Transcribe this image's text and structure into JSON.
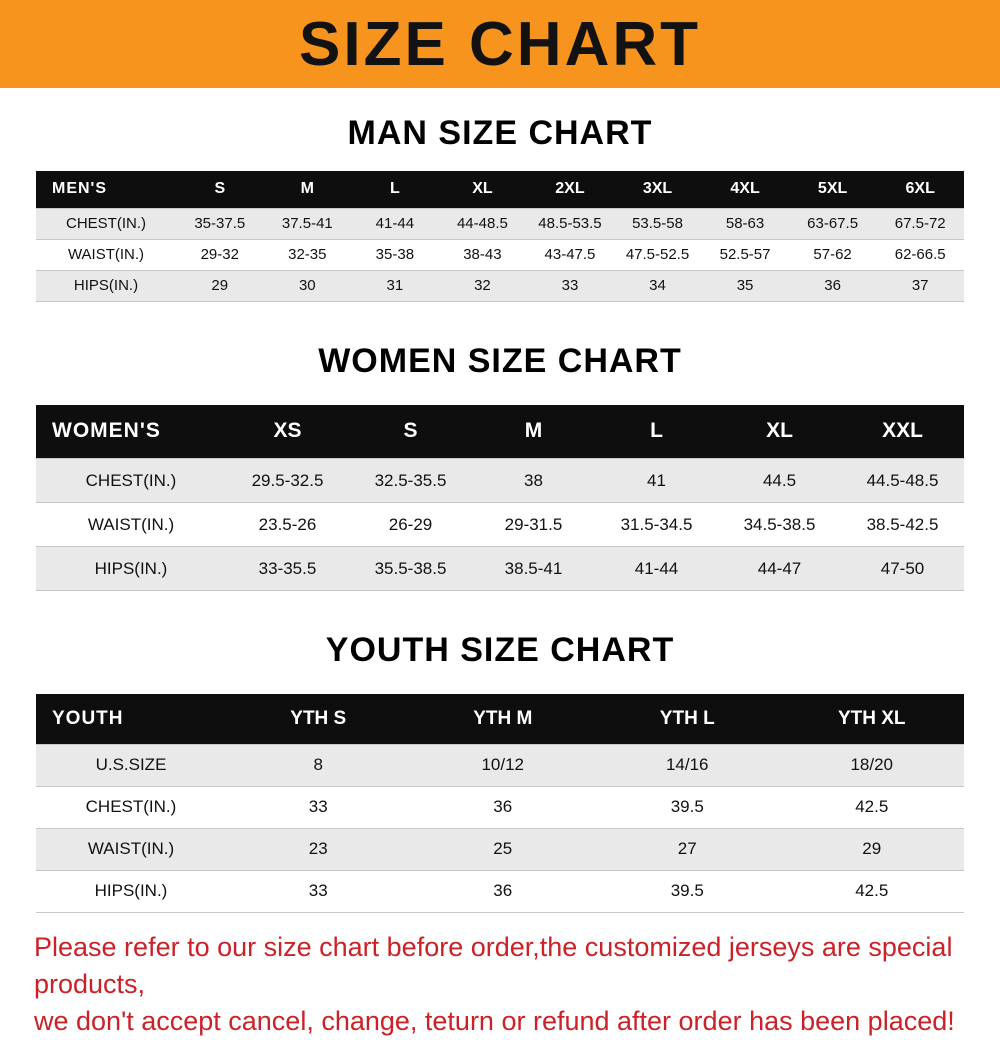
{
  "banner": {
    "title": "SIZE CHART",
    "bg_color": "#f7941e"
  },
  "chart_data": [
    {
      "type": "table",
      "css_class": "men",
      "title": "MAN SIZE CHART",
      "header_label": "MEN'S",
      "columns": [
        "S",
        "M",
        "L",
        "XL",
        "2XL",
        "3XL",
        "4XL",
        "5XL",
        "6XL"
      ],
      "rows": [
        {
          "label": "CHEST(IN.)",
          "values": [
            "35-37.5",
            "37.5-41",
            "41-44",
            "44-48.5",
            "48.5-53.5",
            "53.5-58",
            "58-63",
            "63-67.5",
            "67.5-72"
          ]
        },
        {
          "label": "WAIST(IN.)",
          "values": [
            "29-32",
            "32-35",
            "35-38",
            "38-43",
            "43-47.5",
            "47.5-52.5",
            "52.5-57",
            "57-62",
            "62-66.5"
          ]
        },
        {
          "label": "HIPS(IN.)",
          "values": [
            "29",
            "30",
            "31",
            "32",
            "33",
            "34",
            "35",
            "36",
            "37"
          ]
        }
      ]
    },
    {
      "type": "table",
      "css_class": "women",
      "title": "WOMEN SIZE CHART",
      "header_label": "WOMEN'S",
      "columns": [
        "XS",
        "S",
        "M",
        "L",
        "XL",
        "XXL"
      ],
      "rows": [
        {
          "label": "CHEST(IN.)",
          "values": [
            "29.5-32.5",
            "32.5-35.5",
            "38",
            "41",
            "44.5",
            "44.5-48.5"
          ]
        },
        {
          "label": "WAIST(IN.)",
          "values": [
            "23.5-26",
            "26-29",
            "29-31.5",
            "31.5-34.5",
            "34.5-38.5",
            "38.5-42.5"
          ]
        },
        {
          "label": "HIPS(IN.)",
          "values": [
            "33-35.5",
            "35.5-38.5",
            "38.5-41",
            "41-44",
            "44-47",
            "47-50"
          ]
        }
      ]
    },
    {
      "type": "table",
      "css_class": "youth",
      "title": "YOUTH SIZE CHART",
      "header_label": "YOUTH",
      "columns": [
        "YTH S",
        "YTH M",
        "YTH L",
        "YTH XL"
      ],
      "rows": [
        {
          "label": "U.S.SIZE",
          "values": [
            "8",
            "10/12",
            "14/16",
            "18/20"
          ]
        },
        {
          "label": "CHEST(IN.)",
          "values": [
            "33",
            "36",
            "39.5",
            "42.5"
          ]
        },
        {
          "label": "WAIST(IN.)",
          "values": [
            "23",
            "25",
            "27",
            "29"
          ]
        },
        {
          "label": "HIPS(IN.)",
          "values": [
            "33",
            "36",
            "39.5",
            "42.5"
          ]
        }
      ]
    }
  ],
  "footer": {
    "lines": [
      "Please refer to our size chart before order,the customized jerseys are special products,",
      "we don't accept cancel, change, teturn or refund after order has been placed!"
    ],
    "text_color": "#cb2127"
  },
  "colors": {
    "banner_orange": "#f7941e",
    "table_header_black": "#0e0e0e",
    "row_gray": "#e9e9e9",
    "notice_red": "#cb2127"
  }
}
